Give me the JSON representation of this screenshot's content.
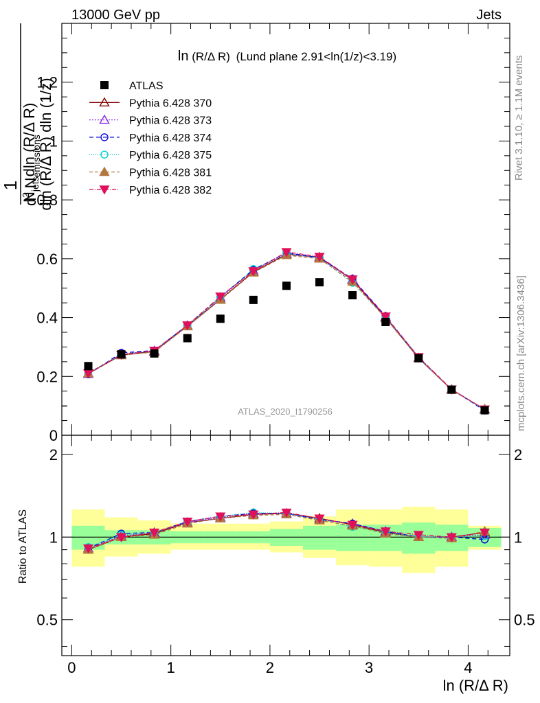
{
  "header": {
    "energy_label": "13000 GeV pp",
    "category_label": "Jets",
    "title_main": "ln",
    "title_arg": "(R/Δ R)",
    "title_rest": "(Lund plane 2.91<ln(1/z)<3.19)",
    "analysis_id": "ATLAS_2020_I1790256",
    "rivet_label": "Rivet 3.1.10, ≥ 1.1M events",
    "mcplots_label": "mcplots.cern.ch [arXiv:1306.3436]"
  },
  "axes": {
    "y_main_label": {
      "one": "1",
      "n": "N",
      "jets": "jets",
      "dln": "dln (R/Δ R)",
      "d2": "d",
      "sup2": "2",
      "nemis": " N",
      "emissions": "emissions",
      "denom": "dln (R/Δ R) dln (1/z)"
    },
    "y_ratio_label": "Ratio to ATLAS",
    "x_label": "ln (R/Δ R)"
  },
  "chart_data": {
    "type": "line",
    "x": [
      0.167,
      0.5,
      0.833,
      1.167,
      1.5,
      1.833,
      2.167,
      2.5,
      2.833,
      3.167,
      3.5,
      3.833,
      4.167
    ],
    "x_bin_edges": [
      0,
      0.333,
      0.667,
      1.0,
      1.333,
      1.667,
      2.0,
      2.333,
      2.667,
      3.0,
      3.333,
      3.667,
      4.0,
      4.333
    ],
    "xlim": [
      -0.1,
      4.42
    ],
    "main": {
      "ylim": [
        0,
        1.4
      ],
      "yticks": [
        0,
        0.2,
        0.4,
        0.6,
        0.8,
        1.0,
        1.2
      ],
      "ytick_labels": [
        "0",
        "0.2",
        "0.4",
        "0.6",
        "0.8",
        "1",
        "1.2"
      ],
      "data": {
        "name": "ATLAS",
        "values": [
          0.235,
          0.275,
          0.278,
          0.33,
          0.396,
          0.46,
          0.508,
          0.52,
          0.476,
          0.385,
          0.262,
          0.155,
          0.085
        ]
      },
      "series": [
        {
          "name": "Pythia 6.428 370",
          "color": "#800000",
          "marker": "triangle-open",
          "dash": "",
          "values": [
            0.21,
            0.272,
            0.285,
            0.371,
            0.462,
            0.555,
            0.615,
            0.605,
            0.528,
            0.4,
            0.262,
            0.155,
            0.088
          ]
        },
        {
          "name": "Pythia 6.428 373",
          "color": "#8a2be2",
          "marker": "triangle-open",
          "dash": "2,2",
          "values": [
            0.208,
            0.276,
            0.287,
            0.373,
            0.468,
            0.56,
            0.618,
            0.602,
            0.53,
            0.403,
            0.263,
            0.156,
            0.087
          ]
        },
        {
          "name": "Pythia 6.428 374",
          "color": "#0000dd",
          "marker": "circle-open",
          "dash": "6,4",
          "values": [
            0.207,
            0.28,
            0.288,
            0.374,
            0.47,
            0.563,
            0.62,
            0.604,
            0.532,
            0.405,
            0.264,
            0.156,
            0.084
          ]
        },
        {
          "name": "Pythia 6.428 375",
          "color": "#00cccc",
          "marker": "circle-open",
          "dash": "1,2",
          "values": [
            0.212,
            0.275,
            0.287,
            0.372,
            0.469,
            0.565,
            0.618,
            0.602,
            0.518,
            0.399,
            0.262,
            0.155,
            0.086
          ]
        },
        {
          "name": "Pythia 6.428 381",
          "color": "#b0773e",
          "marker": "triangle-filled",
          "dash": "5,3",
          "values": [
            0.21,
            0.272,
            0.283,
            0.37,
            0.46,
            0.553,
            0.612,
            0.6,
            0.522,
            0.398,
            0.261,
            0.154,
            0.089
          ]
        },
        {
          "name": "Pythia 6.428 382",
          "color": "#e0105a",
          "marker": "triangle-down-filled",
          "dash": "6,2,1,2",
          "values": [
            0.211,
            0.274,
            0.288,
            0.374,
            0.472,
            0.558,
            0.623,
            0.607,
            0.53,
            0.404,
            0.266,
            0.156,
            0.088
          ]
        }
      ]
    },
    "ratio": {
      "ylim": [
        0.37,
        2.35
      ],
      "yticks": [
        0.5,
        1,
        2
      ],
      "ytick_labels": [
        "0.5",
        "1",
        "2"
      ],
      "band_inner": {
        "lo": [
          0.9,
          0.94,
          0.94,
          0.95,
          0.95,
          0.95,
          0.93,
          0.9,
          0.89,
          0.89,
          0.87,
          0.89,
          0.92
        ],
        "hi": [
          1.1,
          1.06,
          1.06,
          1.05,
          1.05,
          1.05,
          1.07,
          1.1,
          1.11,
          1.11,
          1.13,
          1.11,
          1.08
        ]
      },
      "band_outer": {
        "lo": [
          0.78,
          0.85,
          0.87,
          0.9,
          0.9,
          0.9,
          0.88,
          0.84,
          0.79,
          0.78,
          0.74,
          0.78,
          0.9
        ],
        "hi": [
          1.26,
          1.18,
          1.15,
          1.12,
          1.12,
          1.12,
          1.14,
          1.19,
          1.26,
          1.26,
          1.29,
          1.26,
          1.1
        ]
      },
      "series_values": [
        [
          0.9,
          1.0,
          1.03,
          1.13,
          1.17,
          1.21,
          1.22,
          1.17,
          1.11,
          1.04,
          1.0,
          1.0,
          1.04
        ],
        [
          0.91,
          1.01,
          1.04,
          1.13,
          1.18,
          1.22,
          1.22,
          1.16,
          1.12,
          1.05,
          1.0,
          1.0,
          1.02
        ],
        [
          0.91,
          1.03,
          1.04,
          1.14,
          1.19,
          1.22,
          1.22,
          1.16,
          1.12,
          1.05,
          1.0,
          1.0,
          0.98
        ],
        [
          0.92,
          1.02,
          1.04,
          1.14,
          1.19,
          1.23,
          1.22,
          1.16,
          1.09,
          1.04,
          1.0,
          1.0,
          1.01
        ],
        [
          0.9,
          1.0,
          1.02,
          1.12,
          1.17,
          1.2,
          1.21,
          1.15,
          1.1,
          1.03,
          1.0,
          0.99,
          1.05
        ],
        [
          0.91,
          1.0,
          1.04,
          1.14,
          1.19,
          1.21,
          1.23,
          1.17,
          1.11,
          1.05,
          1.02,
          1.0,
          1.04
        ]
      ]
    },
    "xticks": [
      0,
      1,
      2,
      3,
      4
    ],
    "xtick_labels": [
      "0",
      "1",
      "2",
      "3",
      "4"
    ]
  }
}
